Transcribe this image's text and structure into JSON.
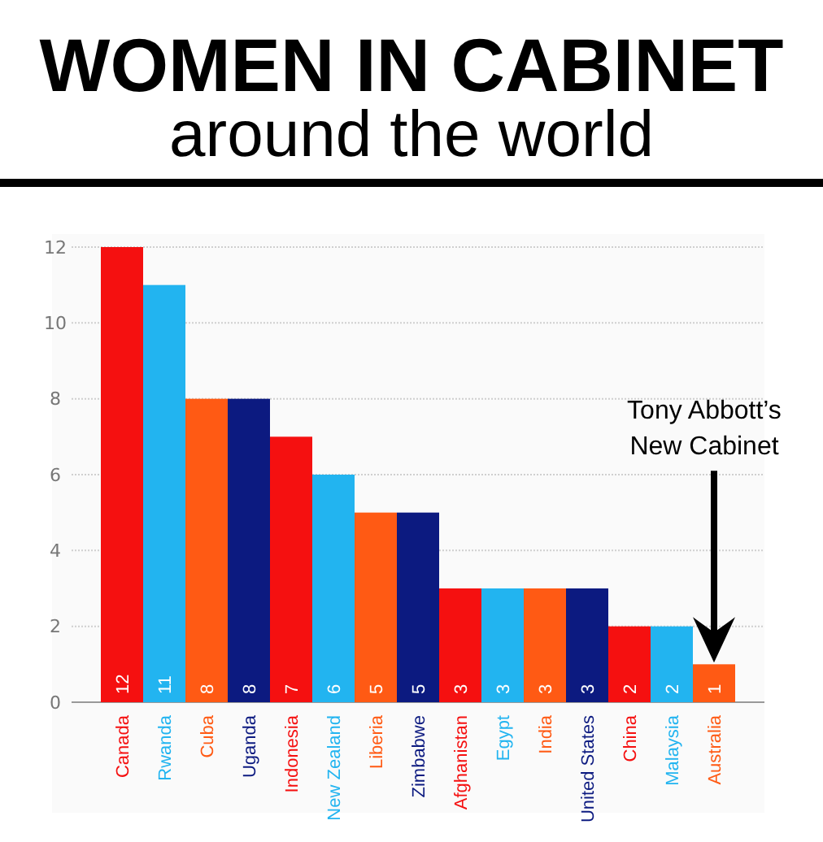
{
  "chart_data": {
    "type": "bar",
    "title": "WOMEN IN CABINET",
    "subtitle": "around the world",
    "categories": [
      "Canada",
      "Rwanda",
      "Cuba",
      "Uganda",
      "Indonesia",
      "New Zealand",
      "Liberia",
      "Zimbabwe",
      "Afghanistan",
      "Egypt",
      "India",
      "United States",
      "China",
      "Malaysia",
      "Australia"
    ],
    "values": [
      12,
      11,
      8,
      8,
      7,
      6,
      5,
      5,
      3,
      3,
      3,
      3,
      2,
      2,
      1
    ],
    "colors": [
      "#f51010",
      "#22b4f0",
      "#ff5a14",
      "#0c1a80",
      "#f51010",
      "#22b4f0",
      "#ff5a14",
      "#0c1a80",
      "#f51010",
      "#22b4f0",
      "#ff5a14",
      "#0c1a80",
      "#f51010",
      "#22b4f0",
      "#ff5a14"
    ],
    "ylim": [
      0,
      12
    ],
    "yticks": [
      0,
      2,
      4,
      6,
      8,
      10,
      12
    ],
    "grid": "y",
    "data_labels": true,
    "annotations": [
      "Tony Abbott’s New Cabinet"
    ]
  }
}
